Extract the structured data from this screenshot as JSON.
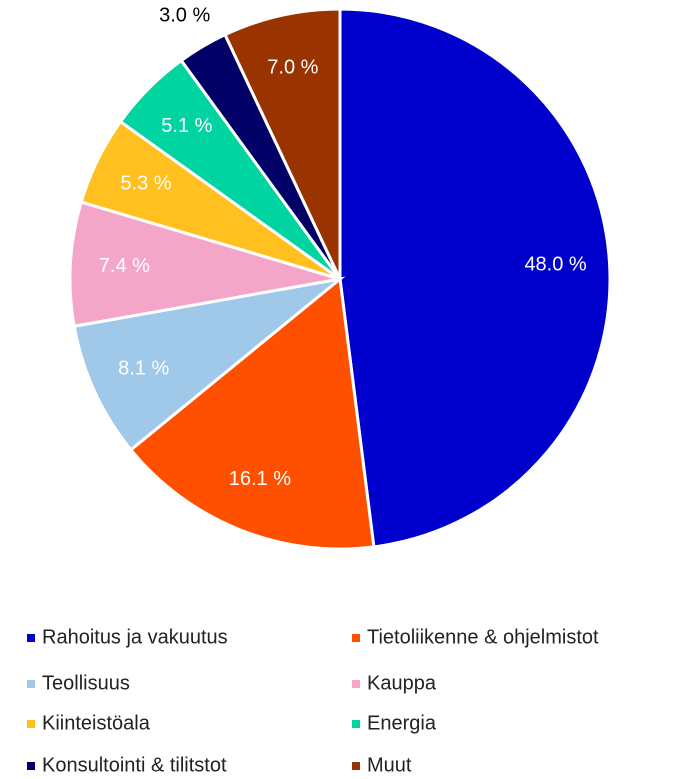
{
  "chart_data": {
    "type": "pie",
    "categories": [
      "Rahoitus ja vakuutus",
      "Tietoliikenne & ohjelmistot",
      "Teollisuus",
      "Kauppa",
      "Kiinteistöala",
      "Energia",
      "Konsultointi & tilitstot",
      "Muut"
    ],
    "values": [
      48.0,
      16.1,
      8.1,
      7.4,
      5.3,
      5.1,
      3.0,
      7.0
    ],
    "value_labels": [
      "48.0 %",
      "16.1 %",
      "8.1 %",
      "7.4 %",
      "5.3 %",
      "5.1 %",
      "3.0 %",
      "7.0 %"
    ],
    "colors": [
      "#0000cc",
      "#ff5000",
      "#a0c8e8",
      "#f4a6c8",
      "#ffc020",
      "#00d4a0",
      "#000066",
      "#993300"
    ],
    "legend": "bottom"
  }
}
